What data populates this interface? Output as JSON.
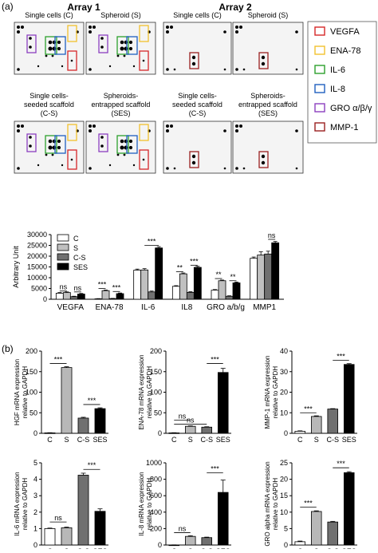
{
  "panel_a": {
    "label": "(a)",
    "array1_title": "Array 1",
    "array2_title": "Array 2",
    "blots": [
      {
        "label": "Single cells (C)",
        "array": 1,
        "pattern": "C"
      },
      {
        "label": "Spheroid (S)",
        "array": 1,
        "pattern": "S"
      },
      {
        "label": "Single cells (C)",
        "array": 2,
        "pattern": "C2"
      },
      {
        "label": "Spheroid (S)",
        "array": 2,
        "pattern": "S2"
      },
      {
        "label": "Single cells-\nseeded scaffold\n(C-S)",
        "array": 1,
        "pattern": "CS"
      },
      {
        "label": "Spheroids-\nentrapped scaffold\n(SES)",
        "array": 1,
        "pattern": "SES"
      },
      {
        "label": "Single cells-\nseeded scaffold\n(C-S)",
        "array": 2,
        "pattern": "CS2"
      },
      {
        "label": "Spheroids-\nentrapped scaffold\n(SES)",
        "array": 2,
        "pattern": "SES2"
      }
    ],
    "legend": [
      {
        "label": "VEGFA",
        "color": "#d62728"
      },
      {
        "label": "ENA-78",
        "color": "#f2c12e"
      },
      {
        "label": "IL-6",
        "color": "#2ca02c"
      },
      {
        "label": "IL-8",
        "color": "#1f5fbf"
      },
      {
        "label": "GRO α/β/γ",
        "color": "#8b3fbf"
      },
      {
        "label": "MMP-1",
        "color": "#9a2020"
      }
    ]
  },
  "panel_b": {
    "label": "(b)"
  },
  "chart_data": [
    {
      "type": "bar",
      "categories": [
        "VEGFA",
        "ENA-78",
        "IL-6",
        "IL8",
        "GRO a/b/g",
        "MMP1"
      ],
      "series": [
        {
          "name": "C",
          "values": [
            2800,
            200,
            13500,
            6000,
            4200,
            19000
          ],
          "errors": [
            300,
            100,
            500,
            300,
            300,
            600
          ],
          "fill": "#ffffff"
        },
        {
          "name": "S",
          "values": [
            3100,
            4000,
            13600,
            11800,
            8600,
            20500
          ],
          "errors": [
            300,
            300,
            600,
            400,
            300,
            1500
          ],
          "fill": "#c0c0c0"
        },
        {
          "name": "C-S",
          "values": [
            1200,
            300,
            3400,
            3200,
            1400,
            21000
          ],
          "errors": [
            200,
            100,
            400,
            300,
            200,
            1300
          ],
          "fill": "#707070"
        },
        {
          "name": "SES",
          "values": [
            2400,
            2600,
            23800,
            14800,
            7600,
            26200
          ],
          "errors": [
            300,
            300,
            600,
            500,
            400,
            600
          ],
          "fill": "#000000"
        }
      ],
      "ylabel": "Arbitrary Unit",
      "ylim": [
        0,
        30000
      ],
      "yticks": [
        0,
        5000,
        10000,
        15000,
        20000,
        25000,
        30000
      ],
      "legend_position": "top-left",
      "significance": [
        "ns",
        "ns",
        "***",
        "***",
        "***",
        "**",
        "***",
        "**",
        "**",
        "ns"
      ]
    },
    {
      "type": "bar",
      "categories": [
        "C",
        "S",
        "C-S",
        "SES"
      ],
      "values": [
        1,
        160,
        37,
        60
      ],
      "errors": [
        0.5,
        2,
        2,
        2
      ],
      "ylabel": "HGF mRNA expression\nrelative to GAPDH",
      "ylim": [
        0,
        200
      ],
      "yticks": [
        0,
        50,
        100,
        150,
        200
      ],
      "significance": [
        "***",
        "***"
      ]
    },
    {
      "type": "bar",
      "categories": [
        "C",
        "S",
        "C-S",
        "SES"
      ],
      "values": [
        1,
        17,
        15,
        148
      ],
      "errors": [
        0.5,
        1,
        1,
        10
      ],
      "ylabel": "ENA-78 mRNA expression\nrelative to GAPDH",
      "ylim": [
        0,
        200
      ],
      "yticks": [
        0,
        50,
        100,
        150,
        200
      ],
      "significance": [
        "ns",
        "ns",
        "***"
      ]
    },
    {
      "type": "bar",
      "categories": [
        "C",
        "S",
        "C-S",
        "SES"
      ],
      "values": [
        1,
        8.2,
        11.8,
        33.5
      ],
      "errors": [
        0.2,
        0.3,
        0.2,
        0.4
      ],
      "ylabel": "MMP-1 mRNA expression\nrelative to GAPDH",
      "ylim": [
        0,
        40
      ],
      "yticks": [
        0,
        10,
        20,
        30,
        40
      ],
      "significance": [
        "***",
        "***"
      ]
    },
    {
      "type": "bar",
      "categories": [
        "C",
        "S",
        "C-S",
        "SES"
      ],
      "values": [
        1,
        1.05,
        4.25,
        2.05
      ],
      "errors": [
        0.03,
        0.04,
        0.12,
        0.15
      ],
      "ylabel": "IL-6 mRNA expression\nrelative to GAPDH",
      "ylim": [
        0,
        5
      ],
      "yticks": [
        0,
        1,
        2,
        3,
        4,
        5
      ],
      "significance": [
        "ns",
        "***"
      ]
    },
    {
      "type": "bar",
      "categories": [
        "C",
        "S",
        "C-S",
        "SES"
      ],
      "values": [
        1,
        105,
        90,
        640
      ],
      "errors": [
        1,
        8,
        6,
        150
      ],
      "ylabel": "IL-8 mRNA expression\nrelative to GAPDH",
      "ylim": [
        0,
        1000
      ],
      "yticks": [
        0,
        200,
        400,
        600,
        800,
        1000
      ],
      "significance": [
        "ns",
        "***"
      ]
    },
    {
      "type": "bar",
      "categories": [
        "C",
        "S",
        "C-S",
        "SES"
      ],
      "values": [
        1,
        10.2,
        7,
        22
      ],
      "errors": [
        0.2,
        0.2,
        0.2,
        0.3
      ],
      "ylabel": "GRO alpha mRNA expression\nrelative to GAPDH",
      "ylim": [
        0,
        25
      ],
      "yticks": [
        0,
        5,
        10,
        15,
        20,
        25
      ],
      "significance": [
        "***",
        "***"
      ]
    }
  ]
}
